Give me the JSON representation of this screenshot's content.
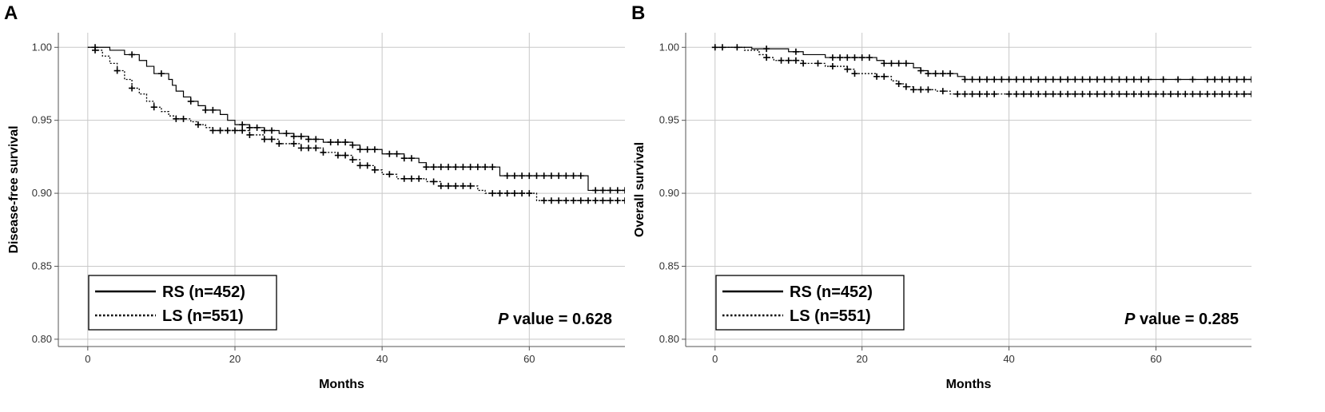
{
  "chart_data": [
    {
      "type": "line",
      "panel_label": "A",
      "title": "",
      "xlabel": "Months",
      "ylabel": "Disease-free survival",
      "xlim": [
        -4,
        73
      ],
      "ylim": [
        0.795,
        1.01
      ],
      "xticks": [
        "0",
        "20",
        "40",
        "60"
      ],
      "yticks": [
        "0.80",
        "0.85",
        "0.90",
        "0.95",
        "1.00"
      ],
      "grid": true,
      "legend_placement": "bottom-left",
      "annotation": {
        "italic": "P",
        "text": " value = 0.628"
      },
      "series": [
        {
          "name": "RS (n=452)",
          "style": "solid",
          "steps": [
            [
              0,
              1.0
            ],
            [
              3,
              0.998
            ],
            [
              5,
              0.995
            ],
            [
              7,
              0.991
            ],
            [
              8,
              0.987
            ],
            [
              9,
              0.982
            ],
            [
              11,
              0.978
            ],
            [
              11.5,
              0.974
            ],
            [
              12,
              0.97
            ],
            [
              13,
              0.966
            ],
            [
              14,
              0.963
            ],
            [
              15,
              0.96
            ],
            [
              16,
              0.957
            ],
            [
              18,
              0.954
            ],
            [
              19,
              0.95
            ],
            [
              20,
              0.947
            ],
            [
              22,
              0.945
            ],
            [
              24,
              0.943
            ],
            [
              26,
              0.941
            ],
            [
              28,
              0.939
            ],
            [
              30,
              0.937
            ],
            [
              32,
              0.935
            ],
            [
              36,
              0.933
            ],
            [
              37,
              0.93
            ],
            [
              40,
              0.927
            ],
            [
              43,
              0.924
            ],
            [
              45,
              0.921
            ],
            [
              46,
              0.918
            ],
            [
              56,
              0.912
            ],
            [
              68,
              0.902
            ],
            [
              74,
              0.902
            ]
          ],
          "censor": [
            1,
            6,
            10,
            14,
            16,
            17,
            21,
            22,
            23,
            24,
            25,
            27,
            28,
            29,
            30,
            31,
            33,
            34,
            35,
            36,
            37,
            38,
            39,
            41,
            42,
            43,
            44,
            46,
            47,
            48,
            49,
            50,
            51,
            52,
            53,
            54,
            55,
            57,
            58,
            59,
            60,
            61,
            62,
            63,
            64,
            65,
            66,
            67,
            69,
            70,
            71,
            72,
            73
          ]
        },
        {
          "name": "LS (n=551)",
          "style": "dotted",
          "steps": [
            [
              0,
              1.0
            ],
            [
              1,
              0.998
            ],
            [
              2,
              0.994
            ],
            [
              3,
              0.989
            ],
            [
              4,
              0.984
            ],
            [
              5,
              0.978
            ],
            [
              6,
              0.972
            ],
            [
              7,
              0.968
            ],
            [
              8,
              0.963
            ],
            [
              9,
              0.959
            ],
            [
              10,
              0.956
            ],
            [
              11,
              0.953
            ],
            [
              12,
              0.951
            ],
            [
              14,
              0.949
            ],
            [
              15,
              0.947
            ],
            [
              16,
              0.945
            ],
            [
              17,
              0.943
            ],
            [
              22,
              0.94
            ],
            [
              24,
              0.937
            ],
            [
              26,
              0.934
            ],
            [
              29,
              0.931
            ],
            [
              32,
              0.928
            ],
            [
              34,
              0.926
            ],
            [
              36,
              0.923
            ],
            [
              37,
              0.919
            ],
            [
              39,
              0.916
            ],
            [
              40,
              0.913
            ],
            [
              42,
              0.91
            ],
            [
              46,
              0.908
            ],
            [
              48,
              0.905
            ],
            [
              53,
              0.902
            ],
            [
              54,
              0.9
            ],
            [
              61,
              0.895
            ],
            [
              74,
              0.895
            ]
          ],
          "censor": [
            1,
            4,
            6,
            9,
            12,
            13,
            15,
            17,
            18,
            19,
            20,
            21,
            22,
            24,
            25,
            26,
            28,
            29,
            30,
            31,
            32,
            34,
            35,
            36,
            37,
            38,
            39,
            41,
            43,
            44,
            45,
            47,
            48,
            49,
            50,
            51,
            52,
            55,
            56,
            57,
            58,
            59,
            60,
            62,
            63,
            64,
            65,
            66,
            67,
            68,
            69,
            70,
            71,
            72,
            73
          ]
        }
      ]
    },
    {
      "type": "line",
      "panel_label": "B",
      "title": "",
      "xlabel": "Months",
      "ylabel": "Overall survival",
      "xlim": [
        -4,
        73
      ],
      "ylim": [
        0.795,
        1.01
      ],
      "xticks": [
        "0",
        "20",
        "40",
        "60"
      ],
      "yticks": [
        "0.80",
        "0.85",
        "0.90",
        "0.95",
        "1.00"
      ],
      "grid": true,
      "legend_placement": "bottom-left",
      "annotation": {
        "italic": "P",
        "text": " value = 0.285"
      },
      "series": [
        {
          "name": "RS (n=452)",
          "style": "solid",
          "steps": [
            [
              0,
              1.0
            ],
            [
              5,
              0.999
            ],
            [
              10,
              0.997
            ],
            [
              12,
              0.995
            ],
            [
              15,
              0.993
            ],
            [
              22,
              0.991
            ],
            [
              23,
              0.989
            ],
            [
              27,
              0.986
            ],
            [
              28,
              0.984
            ],
            [
              29,
              0.982
            ],
            [
              33,
              0.98
            ],
            [
              34,
              0.978
            ],
            [
              74,
              0.978
            ]
          ],
          "censor": [
            0,
            1,
            3,
            7,
            11,
            16,
            17,
            18,
            19,
            20,
            21,
            23,
            24,
            25,
            26,
            28,
            29,
            30,
            31,
            32,
            34,
            35,
            36,
            37,
            38,
            39,
            40,
            41,
            42,
            43,
            44,
            45,
            46,
            47,
            48,
            49,
            50,
            51,
            52,
            53,
            54,
            55,
            56,
            57,
            58,
            59,
            61,
            63,
            65,
            67,
            68,
            69,
            70,
            71,
            72,
            73
          ]
        },
        {
          "name": "LS (n=551)",
          "style": "dotted",
          "steps": [
            [
              0,
              1.0
            ],
            [
              4,
              0.998
            ],
            [
              6,
              0.995
            ],
            [
              7,
              0.993
            ],
            [
              8,
              0.991
            ],
            [
              12,
              0.989
            ],
            [
              15,
              0.987
            ],
            [
              18,
              0.985
            ],
            [
              19,
              0.982
            ],
            [
              22,
              0.98
            ],
            [
              24,
              0.977
            ],
            [
              25,
              0.975
            ],
            [
              26,
              0.973
            ],
            [
              27,
              0.971
            ],
            [
              30,
              0.97
            ],
            [
              32,
              0.968
            ],
            [
              74,
              0.968
            ]
          ],
          "censor": [
            7,
            9,
            10,
            11,
            12,
            14,
            16,
            18,
            19,
            22,
            23,
            25,
            26,
            27,
            28,
            29,
            31,
            33,
            34,
            35,
            36,
            37,
            38,
            40,
            41,
            42,
            43,
            44,
            45,
            46,
            47,
            48,
            49,
            50,
            51,
            52,
            53,
            54,
            55,
            56,
            57,
            58,
            59,
            60,
            61,
            62,
            63,
            64,
            65,
            66,
            67,
            68,
            69,
            70,
            71,
            72,
            73
          ]
        }
      ]
    }
  ]
}
